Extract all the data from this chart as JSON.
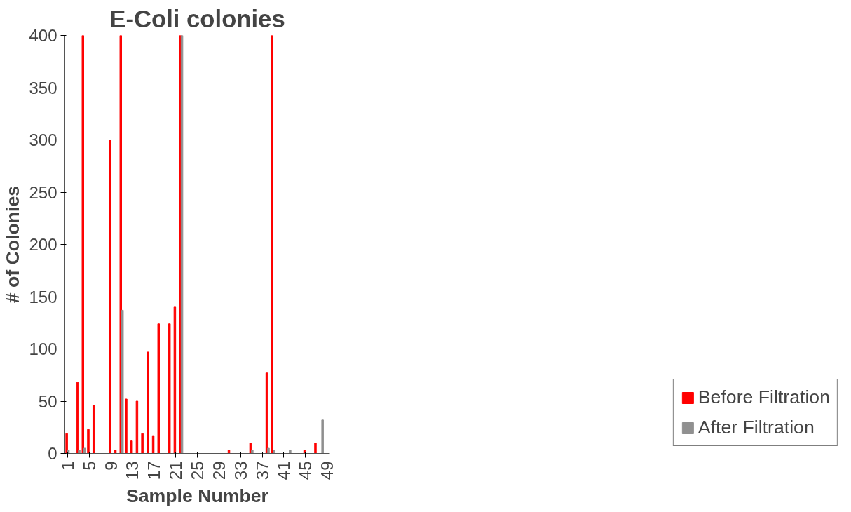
{
  "chart_data": {
    "type": "bar",
    "title": "E-Coli colonies",
    "xlabel": "Sample Number",
    "ylabel": "# of Colonies",
    "categories": [
      "1",
      null,
      null,
      null,
      "5",
      null,
      null,
      null,
      "9",
      null,
      null,
      null,
      "13",
      null,
      null,
      null,
      "17",
      null,
      null,
      null,
      "21",
      null,
      null,
      null,
      "25",
      null,
      null,
      null,
      "29",
      null,
      null,
      null,
      "33",
      null,
      null,
      null,
      "37",
      null,
      null,
      null,
      "41",
      null,
      null,
      null,
      "45",
      null,
      null,
      null,
      "49"
    ],
    "series": [
      {
        "name": "Before Filtration",
        "color": "#ff0000",
        "values": [
          19,
          0,
          68,
          400,
          23,
          46,
          0,
          0,
          300,
          3,
          400,
          52,
          12,
          50,
          19,
          97,
          17,
          124,
          0,
          124,
          140,
          400,
          0,
          0,
          0,
          0,
          0,
          0,
          0,
          0,
          3,
          0,
          0,
          0,
          10,
          0,
          0,
          77,
          400,
          0,
          0,
          0,
          0,
          0,
          3,
          0,
          10,
          0,
          0
        ]
      },
      {
        "name": "After Filtration",
        "color": "#909090",
        "values": [
          3,
          0,
          3,
          5,
          0,
          0,
          0,
          0,
          0,
          0,
          137,
          0,
          0,
          0,
          0,
          0,
          0,
          0,
          0,
          0,
          0,
          400,
          0,
          0,
          0,
          0,
          0,
          0,
          0,
          0,
          0,
          0,
          0,
          0,
          3,
          0,
          0,
          5,
          3,
          0,
          0,
          3,
          0,
          0,
          0,
          0,
          0,
          32,
          0
        ]
      }
    ],
    "ylim": [
      0,
      400
    ],
    "yticks": [
      0,
      50,
      100,
      150,
      200,
      250,
      300,
      350,
      400
    ],
    "grid": false,
    "legend": "bottom right"
  }
}
